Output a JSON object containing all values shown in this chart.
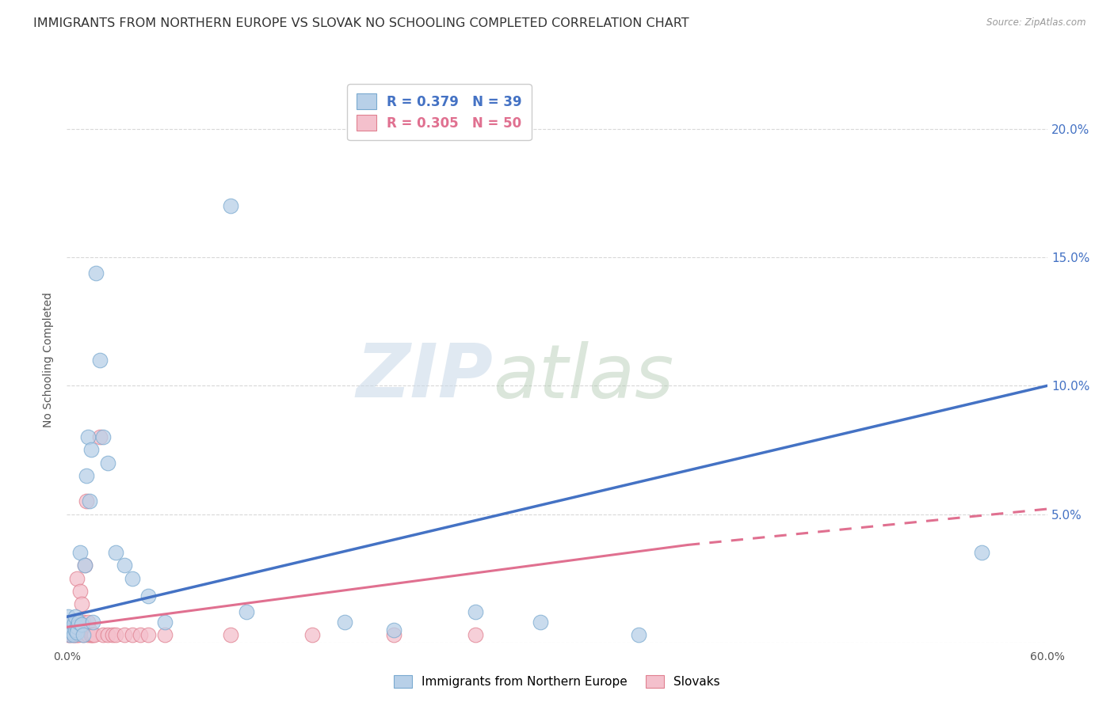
{
  "title": "IMMIGRANTS FROM NORTHERN EUROPE VS SLOVAK NO SCHOOLING COMPLETED CORRELATION CHART",
  "source": "Source: ZipAtlas.com",
  "ylabel": "No Schooling Completed",
  "xlim": [
    0.0,
    0.6
  ],
  "ylim": [
    0.0,
    0.22
  ],
  "watermark_text": "ZIP",
  "watermark_text2": "atlas",
  "blue_series": {
    "label": "Immigrants from Northern Europe",
    "R": 0.379,
    "N": 39,
    "color": "#b8d0e8",
    "edge_color": "#7aaad0",
    "line_color": "#4472c4",
    "points": [
      [
        0.001,
        0.01
      ],
      [
        0.001,
        0.005
      ],
      [
        0.002,
        0.008
      ],
      [
        0.002,
        0.003
      ],
      [
        0.003,
        0.005
      ],
      [
        0.003,
        0.004
      ],
      [
        0.004,
        0.007
      ],
      [
        0.004,
        0.003
      ],
      [
        0.005,
        0.005
      ],
      [
        0.005,
        0.01
      ],
      [
        0.006,
        0.006
      ],
      [
        0.006,
        0.004
      ],
      [
        0.007,
        0.008
      ],
      [
        0.008,
        0.035
      ],
      [
        0.009,
        0.007
      ],
      [
        0.01,
        0.003
      ],
      [
        0.011,
        0.03
      ],
      [
        0.012,
        0.065
      ],
      [
        0.013,
        0.08
      ],
      [
        0.014,
        0.055
      ],
      [
        0.015,
        0.075
      ],
      [
        0.016,
        0.008
      ],
      [
        0.018,
        0.144
      ],
      [
        0.02,
        0.11
      ],
      [
        0.022,
        0.08
      ],
      [
        0.025,
        0.07
      ],
      [
        0.03,
        0.035
      ],
      [
        0.035,
        0.03
      ],
      [
        0.04,
        0.025
      ],
      [
        0.05,
        0.018
      ],
      [
        0.06,
        0.008
      ],
      [
        0.1,
        0.17
      ],
      [
        0.11,
        0.012
      ],
      [
        0.17,
        0.008
      ],
      [
        0.2,
        0.005
      ],
      [
        0.25,
        0.012
      ],
      [
        0.29,
        0.008
      ],
      [
        0.35,
        0.003
      ],
      [
        0.56,
        0.035
      ]
    ]
  },
  "pink_series": {
    "label": "Slovaks",
    "R": 0.305,
    "N": 50,
    "color": "#f4c0cc",
    "edge_color": "#e08090",
    "line_color": "#e07090",
    "points": [
      [
        0.001,
        0.003
      ],
      [
        0.001,
        0.005
      ],
      [
        0.001,
        0.007
      ],
      [
        0.002,
        0.003
      ],
      [
        0.002,
        0.005
      ],
      [
        0.002,
        0.004
      ],
      [
        0.003,
        0.003
      ],
      [
        0.003,
        0.006
      ],
      [
        0.003,
        0.008
      ],
      [
        0.004,
        0.004
      ],
      [
        0.004,
        0.006
      ],
      [
        0.004,
        0.003
      ],
      [
        0.005,
        0.005
      ],
      [
        0.005,
        0.007
      ],
      [
        0.005,
        0.003
      ],
      [
        0.006,
        0.003
      ],
      [
        0.006,
        0.005
      ],
      [
        0.006,
        0.025
      ],
      [
        0.007,
        0.004
      ],
      [
        0.007,
        0.008
      ],
      [
        0.007,
        0.003
      ],
      [
        0.008,
        0.02
      ],
      [
        0.008,
        0.006
      ],
      [
        0.009,
        0.015
      ],
      [
        0.009,
        0.004
      ],
      [
        0.01,
        0.008
      ],
      [
        0.01,
        0.003
      ],
      [
        0.011,
        0.03
      ],
      [
        0.012,
        0.055
      ],
      [
        0.013,
        0.008
      ],
      [
        0.013,
        0.003
      ],
      [
        0.014,
        0.005
      ],
      [
        0.015,
        0.003
      ],
      [
        0.015,
        0.003
      ],
      [
        0.016,
        0.003
      ],
      [
        0.017,
        0.003
      ],
      [
        0.02,
        0.08
      ],
      [
        0.022,
        0.003
      ],
      [
        0.025,
        0.003
      ],
      [
        0.028,
        0.003
      ],
      [
        0.03,
        0.003
      ],
      [
        0.035,
        0.003
      ],
      [
        0.04,
        0.003
      ],
      [
        0.045,
        0.003
      ],
      [
        0.05,
        0.003
      ],
      [
        0.06,
        0.003
      ],
      [
        0.1,
        0.003
      ],
      [
        0.15,
        0.003
      ],
      [
        0.2,
        0.003
      ],
      [
        0.25,
        0.003
      ]
    ]
  },
  "blue_trendline": {
    "x_start": 0.0,
    "y_start": 0.01,
    "x_end": 0.6,
    "y_end": 0.1
  },
  "pink_trendline_solid": {
    "x_start": 0.0,
    "y_start": 0.006,
    "x_end": 0.38,
    "y_end": 0.038
  },
  "pink_trendline_dashed": {
    "x_start": 0.38,
    "y_start": 0.038,
    "x_end": 0.6,
    "y_end": 0.052
  },
  "background_color": "#ffffff",
  "grid_color": "#d8d8d8",
  "title_fontsize": 11.5,
  "axis_fontsize": 10,
  "legend_fontsize": 12
}
